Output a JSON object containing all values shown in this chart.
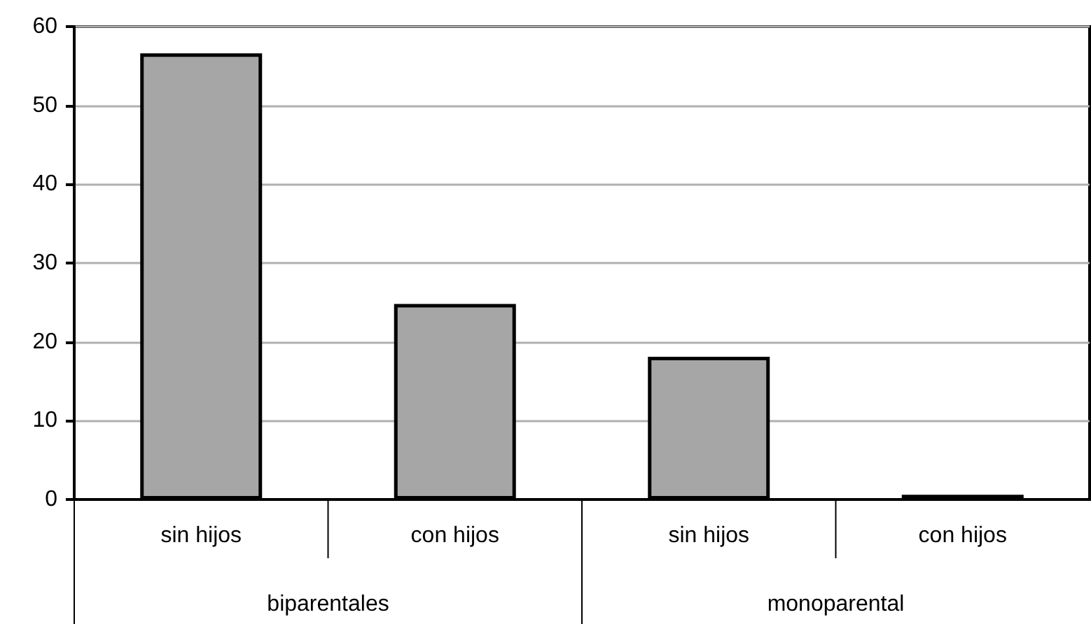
{
  "chart_data": {
    "type": "bar",
    "categories": [
      "sin hijos",
      "con hijos",
      "sin hijos",
      "con hijos"
    ],
    "values": [
      56.6,
      24.8,
      18.1,
      0.6
    ],
    "color": "#a6a6a6",
    "ylim": [
      0,
      60
    ],
    "yticks": [
      0,
      10,
      20,
      30,
      40,
      50,
      60
    ],
    "grid": "y",
    "annotations": [
      "biparentales",
      "monoparental"
    ]
  }
}
